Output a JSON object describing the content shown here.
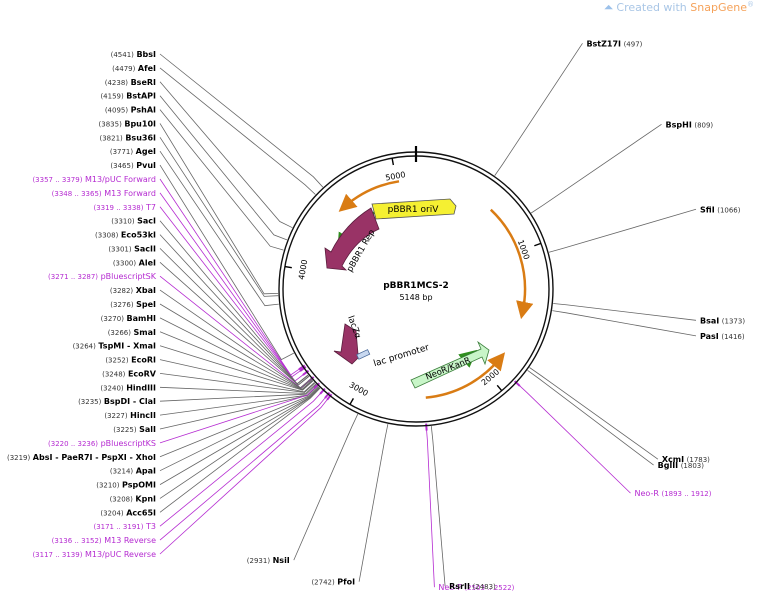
{
  "watermark": {
    "prefix": "Created with ",
    "brand": "SnapGene",
    "mark": "®",
    "icon": "snapgene-logo-icon"
  },
  "plasmid": {
    "name": "pBBR1MCS-2",
    "size_label": "5148 bp",
    "length": 5148
  },
  "ticks": [
    {
      "label": "1000",
      "bp": 1000
    },
    {
      "label": "2000",
      "bp": 2000
    },
    {
      "label": "3000",
      "bp": 3000
    },
    {
      "label": "4000",
      "bp": 4000
    },
    {
      "label": "5000",
      "bp": 5000
    }
  ],
  "features": [
    {
      "name": "pBBR1 oriV",
      "type": "rep_origin",
      "color": "#f5f032"
    },
    {
      "name": "pBBR1 Rep",
      "type": "cds",
      "color": "#993366"
    },
    {
      "name": "lacZα",
      "type": "cds",
      "color": "#993366"
    },
    {
      "name": "lac promoter",
      "type": "promoter",
      "color": "#c8d8f0"
    },
    {
      "name": "NeoR/KanR",
      "type": "cds",
      "color": "#c8f5c8"
    }
  ],
  "sites": [
    {
      "name": "BbsI",
      "pos": "(4541)",
      "style": "enzyme"
    },
    {
      "name": "AfeI",
      "pos": "(4479)",
      "style": "enzyme"
    },
    {
      "name": "BseRI",
      "pos": "(4238)",
      "style": "enzyme"
    },
    {
      "name": "BstAPI",
      "pos": "(4159)",
      "style": "enzyme"
    },
    {
      "name": "PshAI",
      "pos": "(4095)",
      "style": "enzyme"
    },
    {
      "name": "Bpu10I",
      "pos": "(3835)",
      "style": "enzyme"
    },
    {
      "name": "Bsu36I",
      "pos": "(3821)",
      "style": "enzyme"
    },
    {
      "name": "AgeI",
      "pos": "(3771)",
      "style": "enzyme"
    },
    {
      "name": "PvuI",
      "pos": "(3465)",
      "style": "enzyme"
    },
    {
      "name": "M13/pUC Forward",
      "pos": "(3357 .. 3379)",
      "style": "primer"
    },
    {
      "name": "M13 Forward",
      "pos": "(3348 .. 3365)",
      "style": "primer"
    },
    {
      "name": "T7",
      "pos": "(3319 .. 3338)",
      "style": "primer"
    },
    {
      "name": "SacI",
      "pos": "(3310)",
      "style": "enzyme"
    },
    {
      "name": "Eco53kI",
      "pos": "(3308)",
      "style": "enzyme"
    },
    {
      "name": "SacII",
      "pos": "(3301)",
      "style": "enzyme"
    },
    {
      "name": "AleI",
      "pos": "(3300)",
      "style": "enzyme"
    },
    {
      "name": "pBluescriptSK",
      "pos": "(3271 .. 3287)",
      "style": "primer"
    },
    {
      "name": "XbaI",
      "pos": "(3282)",
      "style": "enzyme"
    },
    {
      "name": "SpeI",
      "pos": "(3276)",
      "style": "enzyme"
    },
    {
      "name": "BamHI",
      "pos": "(3270)",
      "style": "enzyme"
    },
    {
      "name": "SmaI",
      "pos": "(3266)",
      "style": "enzyme"
    },
    {
      "name": "TspMI  -  XmaI",
      "pos": "(3264)",
      "style": "enzyme"
    },
    {
      "name": "EcoRI",
      "pos": "(3252)",
      "style": "enzyme"
    },
    {
      "name": "EcoRV",
      "pos": "(3248)",
      "style": "enzyme"
    },
    {
      "name": "HindIII",
      "pos": "(3240)",
      "style": "enzyme"
    },
    {
      "name": "BspDI  -  ClaI",
      "pos": "(3235)",
      "style": "enzyme"
    },
    {
      "name": "HincII",
      "pos": "(3227)",
      "style": "enzyme"
    },
    {
      "name": "SalI",
      "pos": "(3225)",
      "style": "enzyme"
    },
    {
      "name": "pBluescriptKS",
      "pos": "(3220 .. 3236)",
      "style": "primer"
    },
    {
      "name": "AbsI  -  PaeR7I  -  PspXI  -  XhoI",
      "pos": "(3219)",
      "style": "enzyme"
    },
    {
      "name": "ApaI",
      "pos": "(3214)",
      "style": "enzyme"
    },
    {
      "name": "PspOMI",
      "pos": "(3210)",
      "style": "enzyme"
    },
    {
      "name": "KpnI",
      "pos": "(3208)",
      "style": "enzyme"
    },
    {
      "name": "Acc65I",
      "pos": "(3204)",
      "style": "enzyme"
    },
    {
      "name": "T3",
      "pos": "(3171 .. 3191)",
      "style": "primer"
    },
    {
      "name": "M13 Reverse",
      "pos": "(3136 .. 3152)",
      "style": "primer"
    },
    {
      "name": "M13/pUC Reverse",
      "pos": "(3117 .. 3139)",
      "style": "primer"
    },
    {
      "name": "NsiI",
      "pos": "(2931)",
      "style": "enzyme"
    },
    {
      "name": "PfoI",
      "pos": "(2742)",
      "style": "enzyme"
    },
    {
      "name": "Neo-F",
      "pos": "(2503 .. 2522)",
      "style": "primer"
    },
    {
      "name": "RsrII",
      "pos": "(2483)",
      "style": "enzyme"
    },
    {
      "name": "Neo-R",
      "pos": "(1893 .. 1912)",
      "style": "primer"
    },
    {
      "name": "BglII",
      "pos": "(1803)",
      "style": "enzyme"
    },
    {
      "name": "XcmI",
      "pos": "(1783)",
      "style": "enzyme"
    },
    {
      "name": "PasI",
      "pos": "(1416)",
      "style": "enzyme"
    },
    {
      "name": "BsaI",
      "pos": "(1373)",
      "style": "enzyme"
    },
    {
      "name": "SfiI",
      "pos": "(1066)",
      "style": "enzyme"
    },
    {
      "name": "BspHI",
      "pos": "(809)",
      "style": "enzyme"
    },
    {
      "name": "BstZ17I",
      "pos": "(497)",
      "style": "enzyme"
    }
  ],
  "colors": {
    "enzyme": "#000000",
    "primer": "#b52bd1",
    "leader": "#666666",
    "backbone": "#111111"
  }
}
